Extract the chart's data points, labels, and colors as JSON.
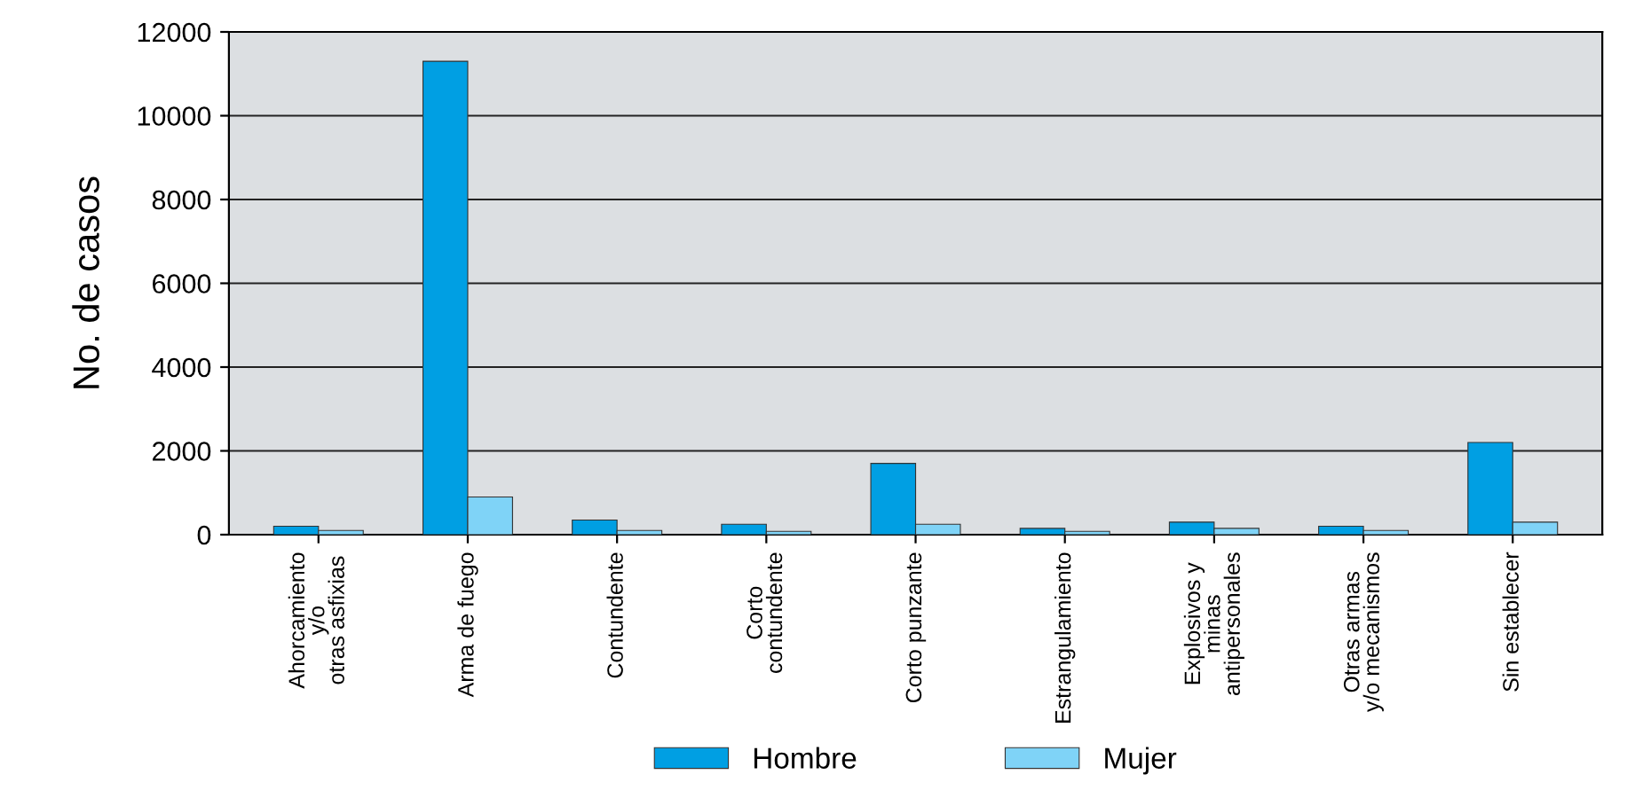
{
  "chart_data": {
    "type": "bar",
    "ylabel": "No. de casos",
    "categories": [
      "Ahorcamiento\ny/o\notras asfixias",
      "Arma de fuego",
      "Contundente",
      "Corto\ncontundente",
      "Corto punzante",
      "Estrangulamiento",
      "Explosivos y\nminas\nantipersonales",
      "Otras armas\ny/o mecanismos",
      "Sin establecer"
    ],
    "series": [
      {
        "name": "Hombre",
        "color": "#009fe3",
        "values": [
          200,
          11300,
          350,
          250,
          1700,
          150,
          300,
          200,
          2200
        ]
      },
      {
        "name": "Mujer",
        "color": "#7fd3f7",
        "values": [
          100,
          900,
          100,
          80,
          250,
          80,
          150,
          100,
          300
        ]
      }
    ],
    "ylim": [
      0,
      12000
    ],
    "yticks": [
      0,
      2000,
      4000,
      6000,
      8000,
      10000,
      12000
    ],
    "grid": "y",
    "legend": "bottom"
  }
}
